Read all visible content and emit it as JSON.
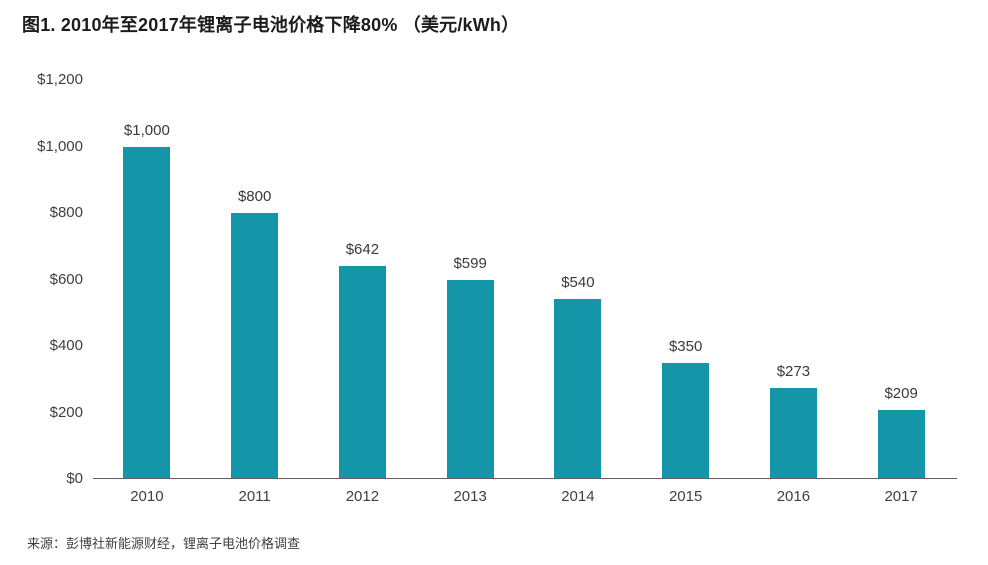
{
  "source_note": "来源：彭博社新能源财经，锂离子电池价格调查",
  "colors": {
    "bar": "#1496a8",
    "title_text": "#1c1c1c",
    "axis_text": "#404040",
    "axis_line": "#606060"
  },
  "chart_data": {
    "type": "bar",
    "title": "图1. 2010年至2017年锂离子电池价格下降80% （美元/kWh）",
    "categories": [
      "2010",
      "2011",
      "2012",
      "2013",
      "2014",
      "2015",
      "2016",
      "2017"
    ],
    "values": [
      1000,
      800,
      642,
      599,
      540,
      350,
      273,
      209
    ],
    "value_labels": [
      "$1,000",
      "$800",
      "$642",
      "$599",
      "$540",
      "$350",
      "$273",
      "$209"
    ],
    "y_ticks": [
      "$1,200",
      "$1,000",
      "$800",
      "$600",
      "$400",
      "$200",
      "$0"
    ],
    "y_tick_values": [
      1200,
      1000,
      800,
      600,
      400,
      200,
      0
    ],
    "xlabel": "",
    "ylabel": "",
    "ylim": [
      0,
      1200
    ],
    "grid": false,
    "legend": false,
    "bar_color": "#1496a8"
  }
}
